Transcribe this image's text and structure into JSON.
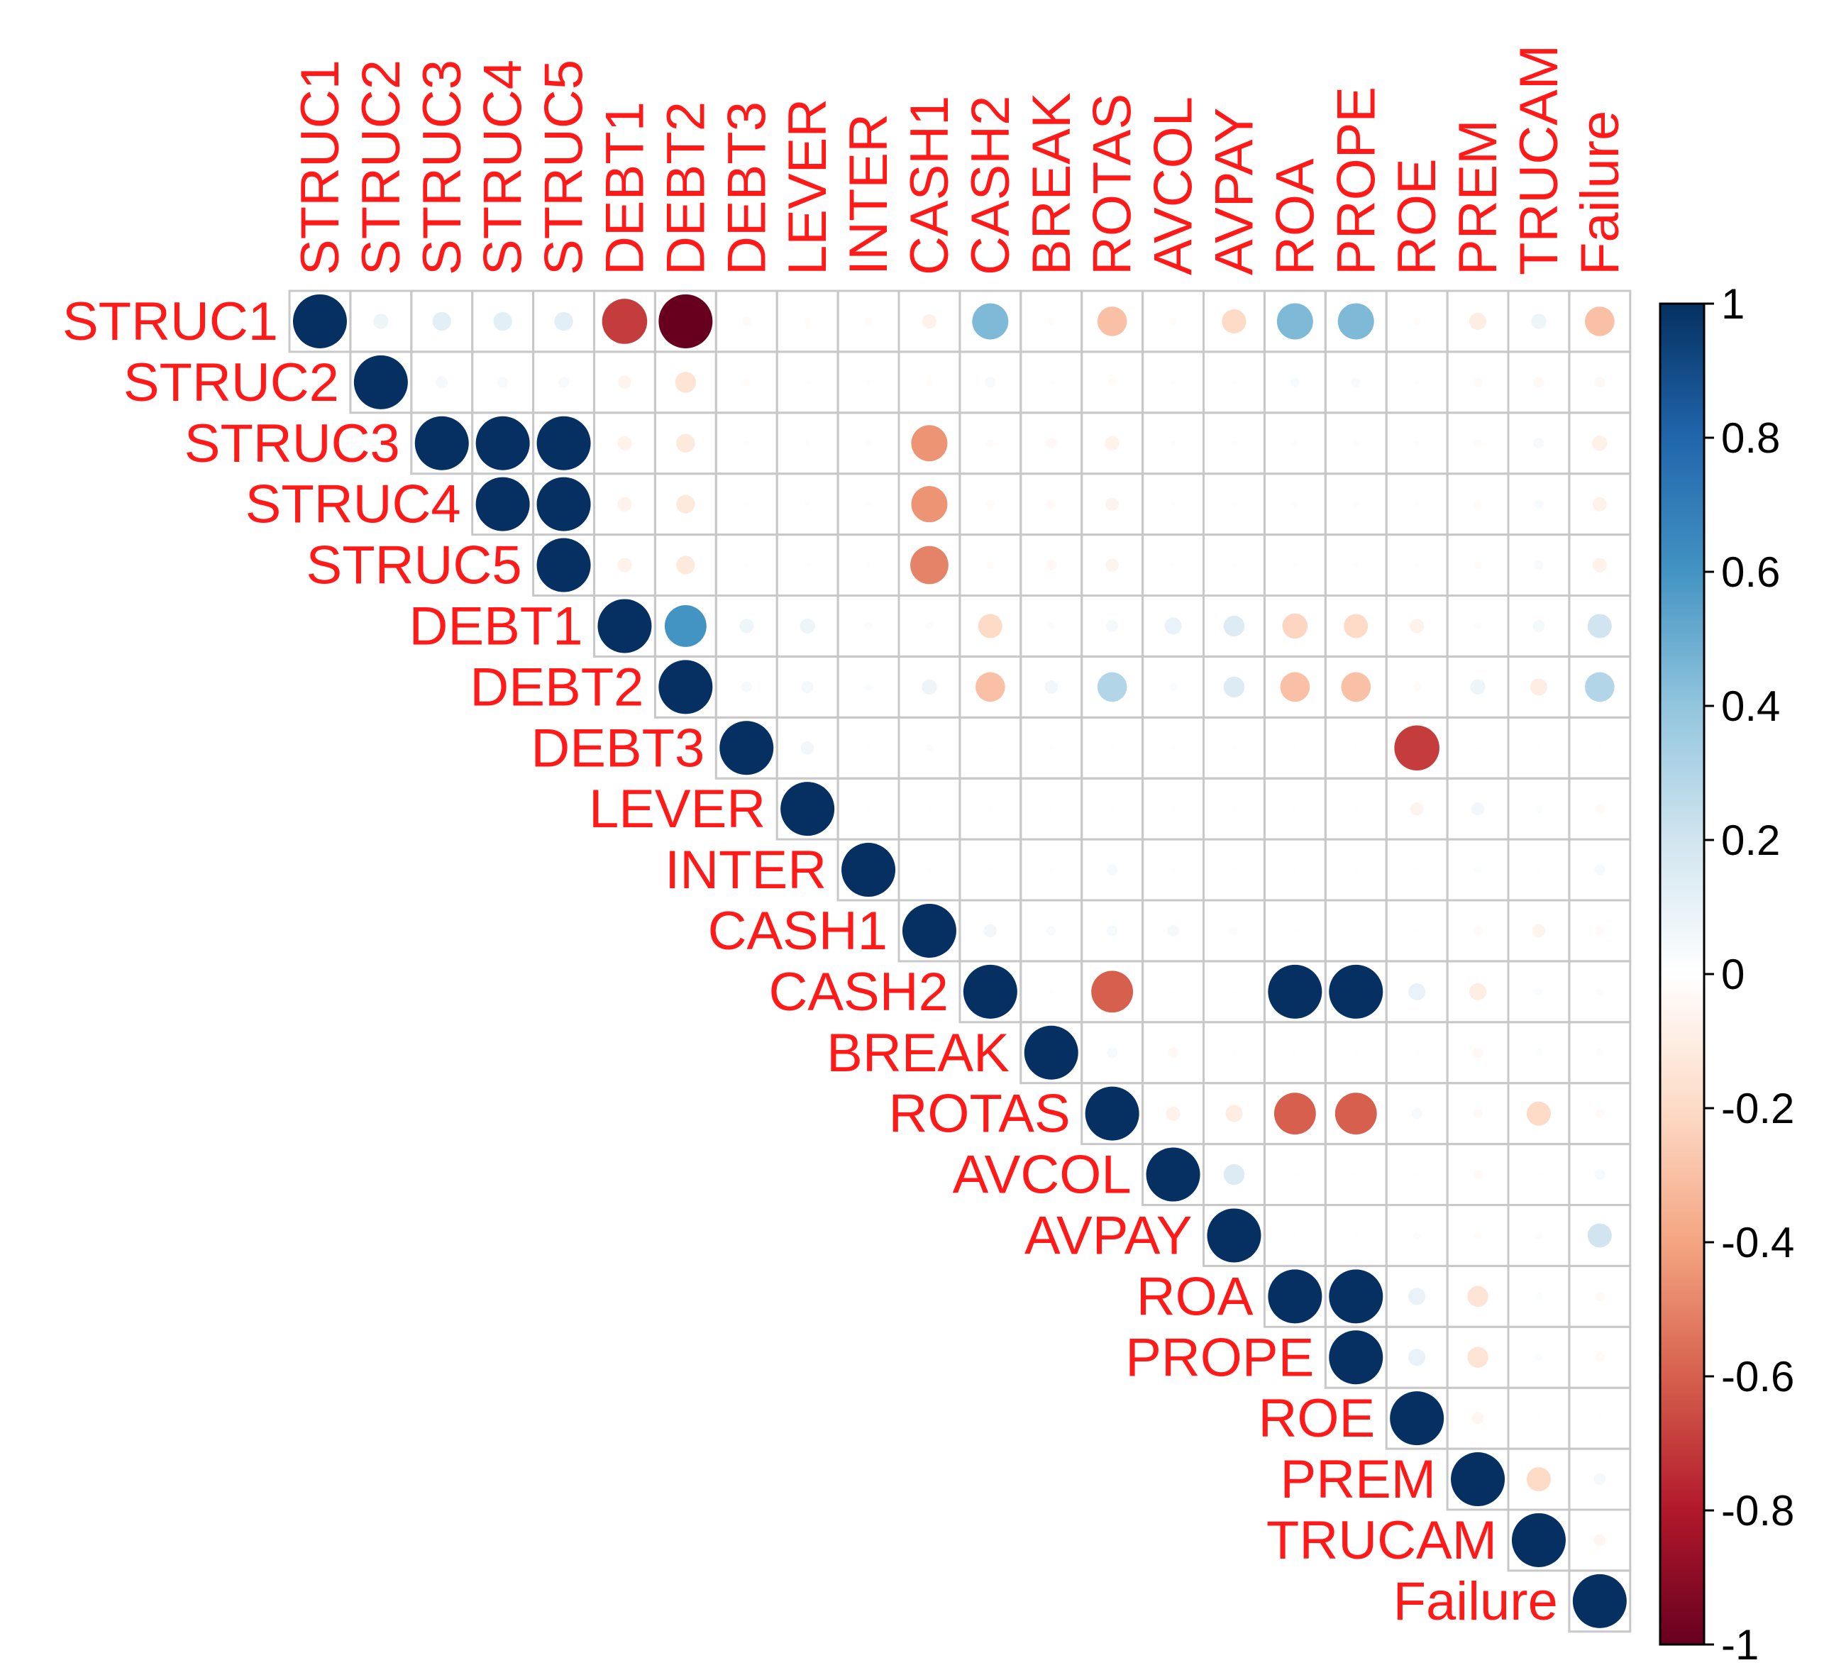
{
  "chart_data": {
    "type": "correlation-matrix",
    "layout": "upper",
    "title": "",
    "variables": [
      "STRUC1",
      "STRUC2",
      "STRUC3",
      "STRUC4",
      "STRUC5",
      "DEBT1",
      "DEBT2",
      "DEBT3",
      "LEVER",
      "INTER",
      "CASH1",
      "CASH2",
      "BREAK",
      "ROTAS",
      "AVCOL",
      "AVPAY",
      "ROA",
      "PROPE",
      "ROE",
      "PREM",
      "TRUCAM",
      "Failure"
    ],
    "matrix": [
      [
        1,
        0.08,
        0.12,
        0.12,
        0.12,
        -0.7,
        -1,
        -0.03,
        -0.02,
        -0.02,
        -0.07,
        0.45,
        -0.02,
        -0.3,
        -0.02,
        -0.2,
        0.45,
        0.45,
        -0.02,
        -0.1,
        0.08,
        -0.3
      ],
      [
        0.08,
        1,
        0.05,
        0.04,
        0.04,
        -0.06,
        -0.15,
        -0.02,
        -0.01,
        -0.01,
        -0.02,
        0.04,
        -0.01,
        -0.02,
        -0.01,
        -0.01,
        0.03,
        0.03,
        -0.01,
        -0.03,
        -0.04,
        -0.04
      ],
      [
        0.12,
        0.05,
        1,
        1,
        1,
        -0.07,
        -0.12,
        -0.01,
        -0.01,
        -0.01,
        -0.45,
        -0.02,
        -0.04,
        -0.07,
        -0.01,
        -0.01,
        -0.01,
        -0.01,
        -0.01,
        -0.02,
        0.04,
        -0.08
      ],
      [
        0.12,
        0.04,
        1,
        1,
        1,
        -0.07,
        -0.12,
        -0.01,
        -0.01,
        -0.01,
        -0.45,
        -0.02,
        -0.03,
        -0.06,
        -0.01,
        -0.01,
        -0.01,
        -0.01,
        -0.01,
        -0.02,
        0.03,
        -0.07
      ],
      [
        0.12,
        0.04,
        1,
        1,
        1,
        -0.07,
        -0.12,
        -0.01,
        -0.01,
        -0.01,
        -0.5,
        -0.02,
        -0.04,
        -0.06,
        -0.01,
        -0.01,
        -0.01,
        -0.01,
        -0.01,
        -0.02,
        0.03,
        -0.07
      ],
      [
        -0.7,
        -0.06,
        -0.07,
        -0.07,
        -0.07,
        1,
        0.6,
        0.07,
        0.08,
        0.02,
        0.02,
        -0.2,
        0.02,
        0.05,
        0.1,
        0.15,
        -0.22,
        -0.2,
        -0.07,
        0.02,
        0.05,
        0.2
      ],
      [
        -1,
        -0.15,
        -0.12,
        -0.12,
        -0.12,
        0.6,
        1,
        0.04,
        0.05,
        0.02,
        0.08,
        -0.3,
        0.06,
        0.3,
        0.02,
        0.15,
        -0.3,
        -0.3,
        -0.02,
        0.08,
        -0.1,
        0.3
      ],
      [
        -0.03,
        -0.02,
        -0.01,
        -0.01,
        -0.01,
        0.07,
        0.04,
        1,
        0.06,
        0.01,
        0.02,
        0.01,
        0.01,
        0.01,
        0.01,
        0.01,
        0.01,
        0.01,
        -0.7,
        0.01,
        0.01,
        0.01
      ],
      [
        -0.02,
        -0.01,
        -0.01,
        -0.01,
        -0.01,
        0.08,
        0.05,
        0.06,
        1,
        0.01,
        0.01,
        0.01,
        0.01,
        0.01,
        0.01,
        0.01,
        0.01,
        0.01,
        -0.06,
        0.06,
        0.02,
        -0.03
      ],
      [
        -0.02,
        -0.01,
        -0.01,
        -0.01,
        -0.01,
        0.02,
        0.02,
        0.01,
        0.01,
        1,
        0.01,
        0.01,
        0.01,
        0.04,
        0.01,
        0.01,
        0.01,
        0.01,
        0.01,
        0.02,
        0.01,
        0.04
      ],
      [
        -0.07,
        -0.02,
        -0.45,
        -0.45,
        -0.5,
        0.02,
        0.08,
        0.02,
        0.01,
        0.01,
        1,
        0.06,
        0.03,
        0.04,
        0.05,
        0.02,
        0.01,
        0.01,
        0.01,
        -0.03,
        -0.06,
        -0.03
      ],
      [
        0.45,
        0.04,
        -0.02,
        -0.02,
        -0.02,
        -0.2,
        -0.3,
        0.01,
        0.01,
        0.01,
        0.06,
        1,
        0.01,
        -0.6,
        0.01,
        0.01,
        1,
        1,
        0.1,
        -0.1,
        0.02,
        0.02
      ],
      [
        -0.02,
        -0.01,
        -0.04,
        -0.03,
        -0.04,
        0.02,
        0.06,
        0.01,
        0.01,
        0.01,
        0.03,
        0.01,
        1,
        0.04,
        -0.04,
        0.01,
        0.01,
        0.01,
        0.01,
        -0.04,
        0.02,
        0.02
      ],
      [
        -0.3,
        -0.02,
        -0.07,
        -0.06,
        -0.06,
        0.05,
        0.3,
        0.01,
        0.01,
        0.04,
        0.04,
        -0.6,
        0.04,
        1,
        -0.07,
        -0.1,
        -0.6,
        -0.6,
        0.04,
        -0.03,
        -0.2,
        -0.03
      ],
      [
        -0.02,
        -0.01,
        -0.01,
        -0.01,
        -0.01,
        0.1,
        0.02,
        0.01,
        0.01,
        0.01,
        0.05,
        0.01,
        -0.04,
        -0.07,
        1,
        0.15,
        0.01,
        0.01,
        0.01,
        -0.03,
        0.01,
        0.04
      ],
      [
        -0.2,
        -0.01,
        -0.01,
        -0.01,
        -0.01,
        0.15,
        0.15,
        0.01,
        0.01,
        0.01,
        0.02,
        0.01,
        0.01,
        -0.1,
        0.15,
        1,
        0.01,
        0.01,
        0.02,
        -0.02,
        0.02,
        0.2
      ],
      [
        0.45,
        0.03,
        -0.01,
        -0.01,
        -0.01,
        -0.22,
        -0.3,
        0.01,
        0.01,
        0.01,
        0.01,
        1,
        0.01,
        -0.6,
        0.01,
        0.01,
        1,
        1,
        0.1,
        -0.15,
        0.02,
        -0.03
      ],
      [
        0.45,
        0.03,
        -0.01,
        -0.01,
        -0.01,
        -0.2,
        -0.3,
        0.01,
        0.01,
        0.01,
        0.01,
        1,
        0.01,
        -0.6,
        0.01,
        0.01,
        1,
        1,
        0.1,
        -0.15,
        0.02,
        -0.03
      ],
      [
        -0.02,
        -0.01,
        -0.01,
        -0.01,
        -0.01,
        -0.07,
        -0.02,
        -0.7,
        -0.06,
        0.01,
        0.01,
        0.1,
        0.01,
        0.04,
        0.01,
        0.02,
        0.1,
        0.1,
        1,
        -0.05,
        0.01,
        0.01
      ],
      [
        -0.1,
        -0.03,
        -0.02,
        -0.02,
        -0.02,
        0.02,
        0.08,
        0.01,
        0.06,
        0.02,
        -0.03,
        -0.1,
        -0.04,
        -0.03,
        -0.03,
        -0.02,
        -0.15,
        -0.15,
        -0.05,
        1,
        -0.2,
        0.05
      ],
      [
        0.08,
        -0.04,
        0.04,
        0.03,
        0.03,
        0.05,
        -0.1,
        0.01,
        0.02,
        0.01,
        -0.06,
        0.02,
        0.02,
        -0.2,
        0.01,
        0.02,
        0.02,
        0.02,
        0.01,
        -0.2,
        1,
        -0.05
      ],
      [
        -0.3,
        -0.04,
        -0.08,
        -0.07,
        -0.07,
        0.2,
        0.3,
        0.01,
        -0.03,
        0.04,
        -0.03,
        0.02,
        0.02,
        -0.03,
        0.04,
        0.2,
        -0.03,
        -0.03,
        0.01,
        0.05,
        -0.05,
        1
      ]
    ],
    "colorbar": {
      "range": [
        -1,
        1
      ],
      "ticks": [
        "1",
        "0.8",
        "0.6",
        "0.4",
        "0.2",
        "0",
        "-0.2",
        "-0.4",
        "-0.6",
        "-0.8",
        "-1"
      ],
      "colors": [
        "#67001f",
        "#b2182b",
        "#d6604d",
        "#f4a582",
        "#fddbc7",
        "#ffffff",
        "#d1e5f0",
        "#92c5de",
        "#4393c3",
        "#2166ac",
        "#053061"
      ]
    },
    "label_color": "#ff1a1a",
    "grid_color": "#c8c8c8"
  }
}
